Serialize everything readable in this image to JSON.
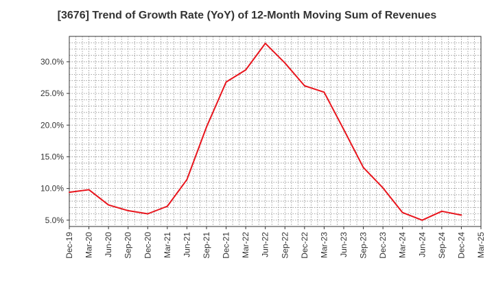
{
  "chart_data": {
    "type": "line",
    "title": "[3676]  Trend of Growth Rate (YoY) of 12-Month Moving Sum of Revenues",
    "xlabel": "",
    "ylabel": "",
    "x_ticks": [
      "Dec-19",
      "Mar-20",
      "Jun-20",
      "Sep-20",
      "Dec-20",
      "Mar-21",
      "Jun-21",
      "Sep-21",
      "Dec-21",
      "Mar-22",
      "Jun-22",
      "Sep-22",
      "Dec-22",
      "Mar-23",
      "Jun-23",
      "Sep-23",
      "Dec-23",
      "Mar-24",
      "Jun-24",
      "Sep-24",
      "Dec-24",
      "Mar-25"
    ],
    "y_ticks": [
      "5.0%",
      "10.0%",
      "15.0%",
      "20.0%",
      "25.0%",
      "30.0%"
    ],
    "ylim": [
      4.0,
      34.0
    ],
    "grid": true,
    "line_color": "#e8141c",
    "series": [
      {
        "values": [
          9.4,
          9.8,
          7.4,
          6.5,
          6.0,
          7.2,
          11.4,
          19.7,
          26.8,
          28.7,
          32.9,
          29.8,
          26.2,
          25.2,
          19.3,
          13.3,
          10.1,
          6.2,
          5.0,
          6.4,
          5.8
        ]
      }
    ]
  }
}
